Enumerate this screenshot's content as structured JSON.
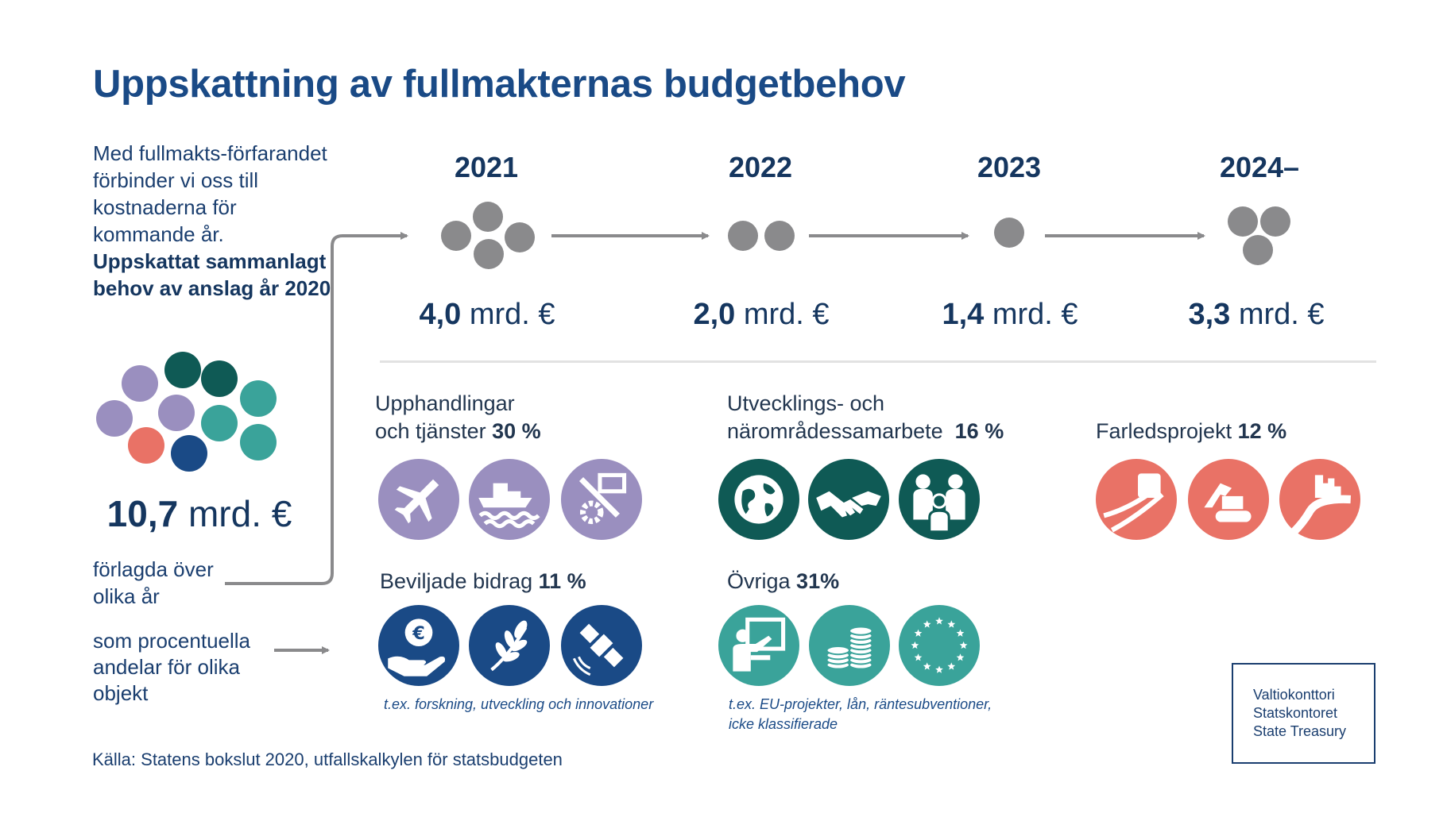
{
  "title": "Uppskattning av fullmakternas budgetbehov",
  "intro": {
    "text": "Med fullmakts-förfarandet förbinder vi oss till kostnaderna för kommande år.",
    "bold": "Uppskattat sammanlagt behov av anslag år 2020"
  },
  "total": {
    "value": "10,7",
    "unit": " mrd. €"
  },
  "caption_years": "förlagda över olika år",
  "caption_shares": "som procentuella andelar för olika objekt",
  "timeline": [
    {
      "year": "2021",
      "value": "4,0",
      "unit": " mrd. €"
    },
    {
      "year": "2022",
      "value": "2,0",
      "unit": " mrd. €"
    },
    {
      "year": "2023",
      "value": "1,4",
      "unit": " mrd. €"
    },
    {
      "year": "2024–",
      "value": "3,3",
      "unit": " mrd. €"
    }
  ],
  "categories": {
    "procurement": {
      "line1": "Upphandlingar",
      "line2": "och tjänster",
      "pct": "30 %",
      "icons": [
        "airplane-icon",
        "ship-icon",
        "tools-icon"
      ]
    },
    "development": {
      "line1": "Utvecklings- och",
      "line2": "närområdessamarbete",
      "pct": "16 %",
      "icons": [
        "globe-icon",
        "handshake-icon",
        "family-icon"
      ]
    },
    "fairway": {
      "label": "Farledsprojekt",
      "pct": "12 %",
      "icons": [
        "road-icon",
        "excavator-icon",
        "river-icon"
      ]
    },
    "grants": {
      "label": "Beviljade bidrag",
      "pct": "11 %",
      "icons": [
        "euro-hand-icon",
        "laurel-icon",
        "satellite-icon"
      ],
      "note": "t.ex. forskning, utveckling och innovationer"
    },
    "other": {
      "label": "Övriga",
      "pct": "31%",
      "icons": [
        "teacher-icon",
        "coins-icon",
        "eu-stars-icon"
      ],
      "note_line1": "t.ex. EU-projekter, lån, räntesubventioner,",
      "note_line2": "icke klassifierade"
    }
  },
  "source": "Källa: Statens bokslut 2020, utfallskalkylen för statsbudgeten",
  "logo": {
    "line1": "Valtiokonttori",
    "line2": "Statskontoret",
    "line3": "State Treasury"
  },
  "colors": {
    "title": "#1a4a86",
    "gray_dot": "#8a8a8c",
    "purple": "#9a8fbf",
    "dark_teal": "#0f5a55",
    "teal": "#3aa39a",
    "coral": "#e97266",
    "navy": "#1a4a86"
  }
}
